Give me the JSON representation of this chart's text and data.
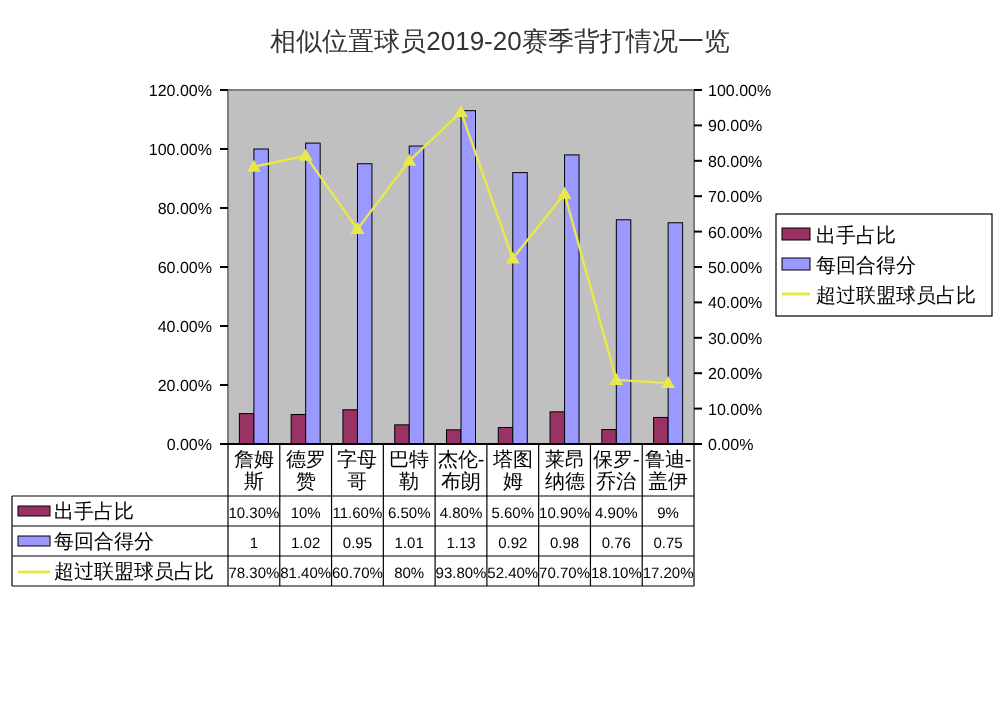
{
  "chart_data": {
    "type": "bar",
    "title": "相似位置球员2019-20赛季背打情况一览",
    "categories": [
      "詹姆斯",
      "德罗赞",
      "字母哥",
      "巴特勒",
      "杰伦-布朗",
      "塔图姆",
      "莱昂纳德",
      "保罗-乔治",
      "鲁迪-盖伊"
    ],
    "series": [
      {
        "name": "出手占比",
        "color": "#993366",
        "values": [
          0.103,
          0.1,
          0.116,
          0.065,
          0.048,
          0.056,
          0.109,
          0.049,
          0.09
        ],
        "value_labels": [
          "10.30%",
          "10%",
          "11.60%",
          "6.50%",
          "4.80%",
          "5.60%",
          "10.90%",
          "4.90%",
          "9%"
        ]
      },
      {
        "name": "每回合得分",
        "color": "#9999ff",
        "values": [
          1,
          1.02,
          0.95,
          1.01,
          1.13,
          0.92,
          0.98,
          0.76,
          0.75
        ],
        "value_labels": [
          "1",
          "1.02",
          "0.95",
          "1.01",
          "1.13",
          "0.92",
          "0.98",
          "0.76",
          "0.75"
        ]
      },
      {
        "name": "超过联盟球员占比",
        "type": "line",
        "axis": "y2",
        "color": "#e8e84a",
        "marker": "triangle",
        "values": [
          0.783,
          0.814,
          0.607,
          0.8,
          0.938,
          0.524,
          0.707,
          0.181,
          0.172
        ],
        "value_labels": [
          "78.30%",
          "81.40%",
          "60.70%",
          "80%",
          "93.80%",
          "52.40%",
          "70.70%",
          "18.10%",
          "17.20%"
        ]
      }
    ],
    "ylim": [
      0,
      1.2
    ],
    "yticks": [
      {
        "value": 0,
        "label": "0.00%"
      },
      {
        "value": 0.2,
        "label": "20.00%"
      },
      {
        "value": 0.4,
        "label": "40.00%"
      },
      {
        "value": 0.6,
        "label": "60.00%"
      },
      {
        "value": 0.8,
        "label": "80.00%"
      },
      {
        "value": 1,
        "label": "100.00%"
      },
      {
        "value": 1.2,
        "label": "120.00%"
      }
    ],
    "y2lim": [
      0,
      1
    ],
    "y2ticks": [
      {
        "value": 0,
        "label": "0.00%"
      },
      {
        "value": 0.1,
        "label": "10.00%"
      },
      {
        "value": 0.2,
        "label": "20.00%"
      },
      {
        "value": 0.3,
        "label": "30.00%"
      },
      {
        "value": 0.4,
        "label": "40.00%"
      },
      {
        "value": 0.5,
        "label": "50.00%"
      },
      {
        "value": 0.6,
        "label": "60.00%"
      },
      {
        "value": 0.7,
        "label": "70.00%"
      },
      {
        "value": 0.8,
        "label": "80.00%"
      },
      {
        "value": 0.9,
        "label": "90.00%"
      },
      {
        "value": 1,
        "label": "100.00%"
      }
    ],
    "grid": false,
    "legend": "right"
  }
}
